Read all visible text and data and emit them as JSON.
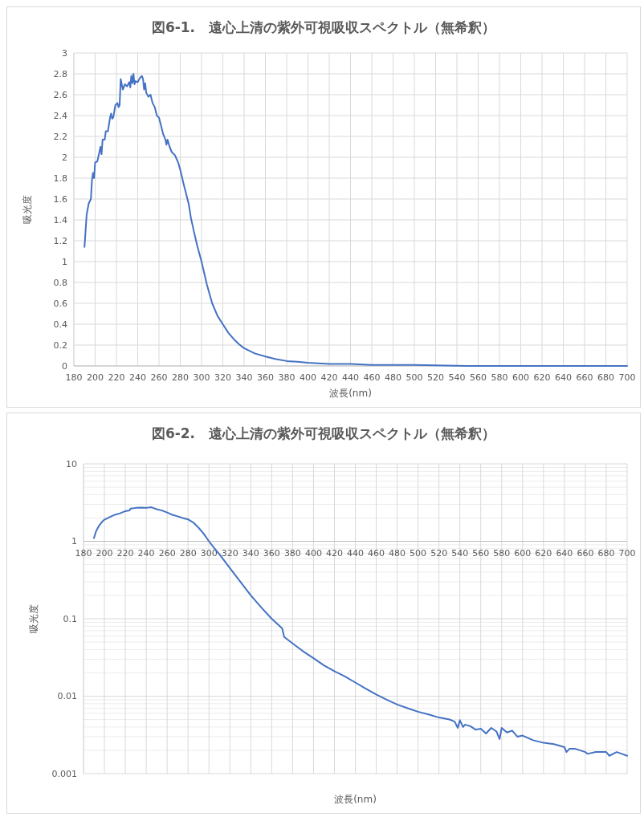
{
  "chart_data": [
    {
      "type": "line",
      "title": "図6-1.　遠心上清の紫外可視吸収スペクトル（無希釈）",
      "xlabel": "波長(nm)",
      "ylabel": "吸光度",
      "grid": true,
      "xlim": [
        180,
        700
      ],
      "xticks": [
        180,
        200,
        220,
        240,
        260,
        280,
        300,
        320,
        340,
        360,
        380,
        400,
        420,
        440,
        460,
        480,
        500,
        520,
        540,
        560,
        580,
        600,
        620,
        640,
        660,
        680,
        700
      ],
      "ylim": [
        0,
        3
      ],
      "yticks": [
        0,
        0.2,
        0.4,
        0.6,
        0.8,
        1,
        1.2,
        1.4,
        1.6,
        1.8,
        2,
        2.2,
        2.4,
        2.6,
        2.8,
        3
      ],
      "series": [
        {
          "color": "#4472c4",
          "x": [
            190,
            192,
            194,
            196,
            197,
            198,
            199,
            200,
            202,
            204,
            205,
            206,
            207,
            209,
            210,
            212,
            214,
            215,
            216,
            217,
            219,
            221,
            222,
            223,
            224,
            226,
            228,
            230,
            232,
            233,
            234,
            235,
            236,
            237,
            238,
            240,
            242,
            244,
            245,
            246,
            247,
            248,
            250,
            252,
            254,
            256,
            258,
            260,
            262,
            264,
            266,
            267,
            268,
            270,
            272,
            275,
            278,
            280,
            283,
            286,
            288,
            290,
            293,
            296,
            300,
            305,
            310,
            315,
            320,
            325,
            330,
            335,
            340,
            350,
            360,
            370,
            380,
            390,
            400,
            420,
            440,
            460,
            480,
            500,
            550,
            600,
            650,
            700
          ],
          "values": [
            1.14,
            1.45,
            1.56,
            1.6,
            1.78,
            1.85,
            1.8,
            1.95,
            1.96,
            2.05,
            2.1,
            2.03,
            2.17,
            2.17,
            2.25,
            2.25,
            2.38,
            2.42,
            2.37,
            2.38,
            2.5,
            2.52,
            2.48,
            2.5,
            2.75,
            2.65,
            2.7,
            2.68,
            2.72,
            2.67,
            2.78,
            2.71,
            2.8,
            2.7,
            2.73,
            2.72,
            2.76,
            2.78,
            2.75,
            2.65,
            2.71,
            2.62,
            2.58,
            2.6,
            2.52,
            2.48,
            2.4,
            2.38,
            2.3,
            2.22,
            2.17,
            2.12,
            2.17,
            2.1,
            2.05,
            2.02,
            1.95,
            1.88,
            1.75,
            1.63,
            1.55,
            1.42,
            1.28,
            1.15,
            1.0,
            0.78,
            0.6,
            0.48,
            0.4,
            0.32,
            0.26,
            0.21,
            0.17,
            0.12,
            0.09,
            0.065,
            0.047,
            0.04,
            0.03,
            0.02,
            0.02,
            0.01,
            0.01,
            0.01,
            0,
            0,
            0,
            0
          ]
        }
      ]
    },
    {
      "type": "line",
      "title": "図6-2.　遠心上清の紫外可視吸収スペクトル（無希釈）",
      "xlabel": "波長(nm)",
      "ylabel": "吸光度",
      "grid": true,
      "log": "y",
      "xlim": [
        180,
        700
      ],
      "xticks": [
        180,
        200,
        220,
        240,
        260,
        280,
        300,
        320,
        340,
        360,
        380,
        400,
        420,
        440,
        460,
        480,
        500,
        520,
        540,
        560,
        580,
        600,
        620,
        640,
        660,
        680,
        700
      ],
      "ylim": [
        0.001,
        10
      ],
      "yticks": [
        0.001,
        0.01,
        0.1,
        1,
        10
      ],
      "series": [
        {
          "color": "#4472c4",
          "x": [
            190,
            192,
            195,
            198,
            200,
            205,
            210,
            215,
            220,
            224,
            225,
            230,
            235,
            240,
            245,
            250,
            255,
            260,
            265,
            270,
            275,
            280,
            285,
            290,
            295,
            300,
            305,
            310,
            320,
            330,
            340,
            350,
            360,
            370,
            372,
            380,
            390,
            400,
            410,
            420,
            430,
            440,
            450,
            460,
            470,
            480,
            490,
            500,
            510,
            520,
            530,
            535,
            538,
            540,
            543,
            545,
            550,
            555,
            560,
            565,
            570,
            575,
            578,
            580,
            585,
            590,
            595,
            600,
            610,
            620,
            630,
            640,
            642,
            645,
            650,
            660,
            662,
            670,
            680,
            683,
            690,
            695,
            700
          ],
          "values": [
            1.1,
            1.35,
            1.6,
            1.8,
            1.9,
            2.05,
            2.2,
            2.3,
            2.45,
            2.5,
            2.65,
            2.7,
            2.72,
            2.7,
            2.75,
            2.6,
            2.5,
            2.35,
            2.2,
            2.1,
            2.0,
            1.92,
            1.75,
            1.5,
            1.25,
            1.0,
            0.82,
            0.68,
            0.45,
            0.3,
            0.2,
            0.14,
            0.1,
            0.075,
            0.058,
            0.048,
            0.038,
            0.031,
            0.025,
            0.021,
            0.018,
            0.015,
            0.0125,
            0.0105,
            0.009,
            0.0078,
            0.007,
            0.0063,
            0.0058,
            0.0053,
            0.005,
            0.0047,
            0.0039,
            0.0049,
            0.004,
            0.0043,
            0.0041,
            0.0037,
            0.0038,
            0.0033,
            0.0039,
            0.0035,
            0.0028,
            0.0039,
            0.0034,
            0.0036,
            0.003,
            0.0031,
            0.0027,
            0.0025,
            0.0024,
            0.0022,
            0.0019,
            0.0021,
            0.0021,
            0.0019,
            0.0018,
            0.0019,
            0.0019,
            0.0017,
            0.0019,
            0.0018,
            0.0017
          ]
        }
      ]
    }
  ]
}
